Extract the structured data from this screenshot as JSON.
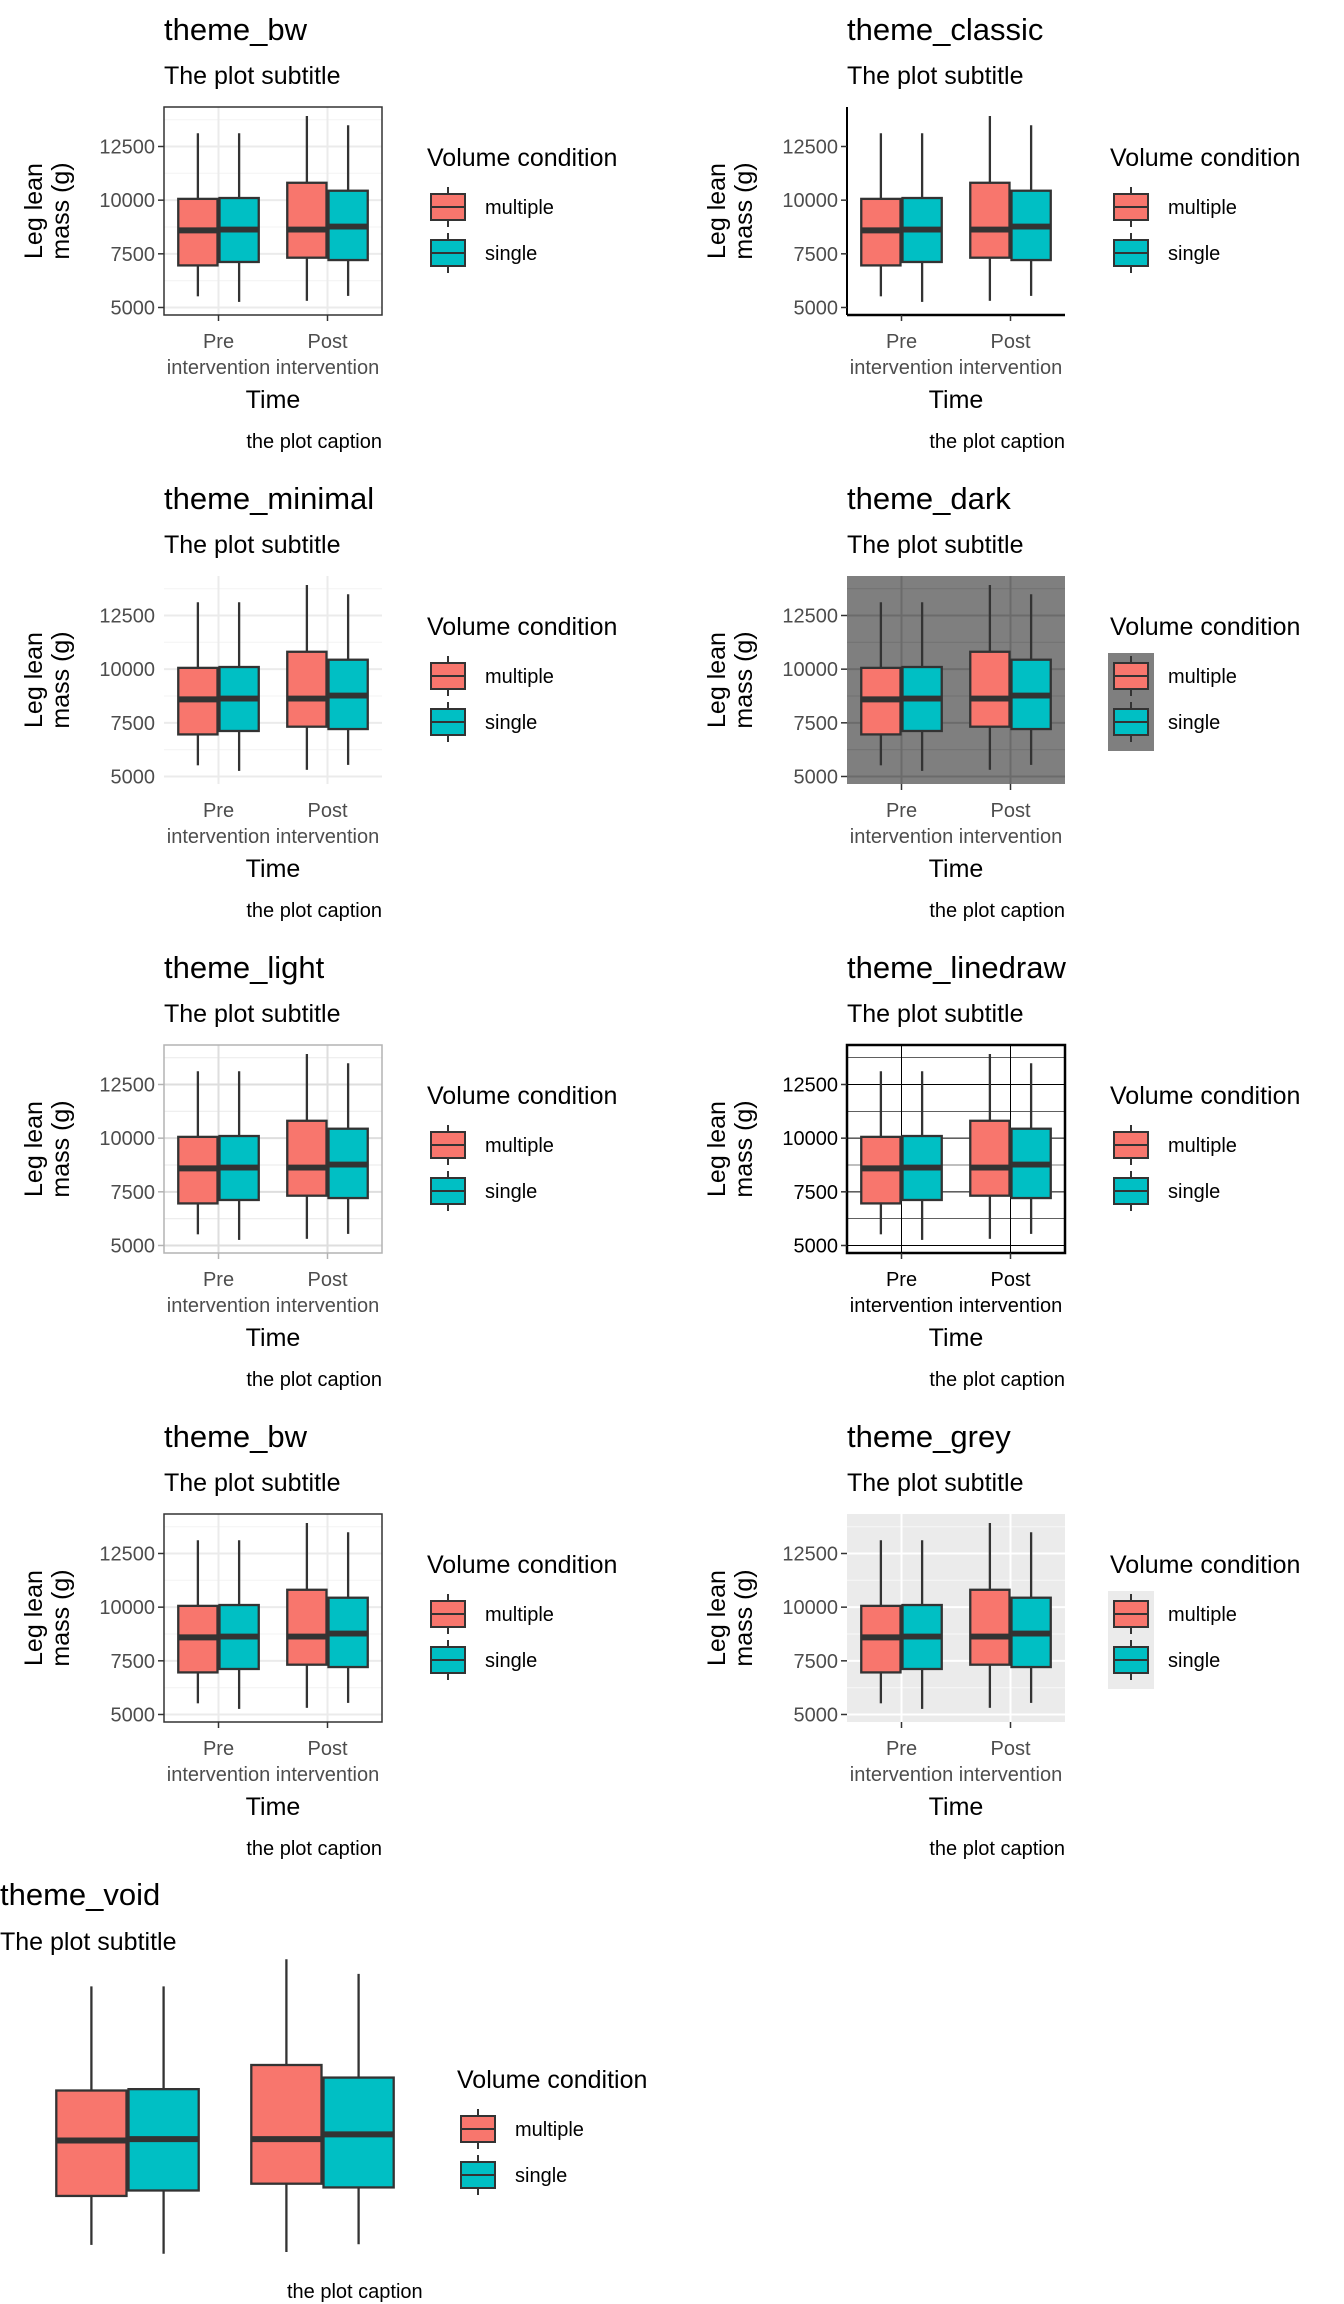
{
  "chart_data": {
    "type": "boxplot",
    "common": {
      "subtitle": "The plot subtitle",
      "caption": "the plot caption",
      "xlabel": "Time",
      "ylabel_lines": [
        "Leg lean",
        "mass (g)"
      ],
      "categories": [
        {
          "lines": [
            "Pre",
            "intervention"
          ]
        },
        {
          "lines": [
            "Post",
            "intervention"
          ]
        }
      ],
      "y_ticks": [
        "5000",
        "7500",
        "10000",
        "12500"
      ],
      "y_tick_values": [
        5000,
        7500,
        10000,
        12500
      ],
      "ylim": [
        4650,
        14340
      ],
      "legend": {
        "title": "Volume condition",
        "placement": "right",
        "entries": [
          {
            "label": "multiple",
            "color": "#F8766D"
          },
          {
            "label": "single",
            "color": "#00BFC4"
          }
        ]
      },
      "series": [
        {
          "name": "multiple",
          "color": "#F8766D",
          "boxes": [
            {
              "category": "Pre intervention",
              "whisker_low": 5520,
              "q1": 6960,
              "median": 8590,
              "q3": 10060,
              "whisker_high": 13120
            },
            {
              "category": "Post intervention",
              "whisker_low": 5310,
              "q1": 7320,
              "median": 8630,
              "q3": 10810,
              "whisker_high": 13920
            }
          ]
        },
        {
          "name": "single",
          "color": "#00BFC4",
          "boxes": [
            {
              "category": "Pre intervention",
              "whisker_low": 5260,
              "q1": 7120,
              "median": 8630,
              "q3": 10100,
              "whisker_high": 13120
            },
            {
              "category": "Post intervention",
              "whisker_low": 5540,
              "q1": 7210,
              "median": 8770,
              "q3": 10440,
              "whisker_high": 13490
            }
          ]
        }
      ]
    },
    "panels": [
      {
        "title": "theme_bw",
        "theme": "bw"
      },
      {
        "title": "theme_classic",
        "theme": "classic"
      },
      {
        "title": "theme_minimal",
        "theme": "minimal"
      },
      {
        "title": "theme_dark",
        "theme": "dark"
      },
      {
        "title": "theme_light",
        "theme": "light"
      },
      {
        "title": "theme_linedraw",
        "theme": "linedraw"
      },
      {
        "title": "theme_bw",
        "theme": "bw"
      },
      {
        "title": "theme_grey",
        "theme": "grey"
      },
      {
        "title": "theme_void",
        "theme": "void"
      }
    ]
  },
  "colors": {
    "multiple": "#F8766D",
    "single": "#00BFC4",
    "box_outline": "#333333",
    "dark_panel_bg": "#7F7F7F",
    "grey_panel_bg": "#EBEBEB"
  }
}
